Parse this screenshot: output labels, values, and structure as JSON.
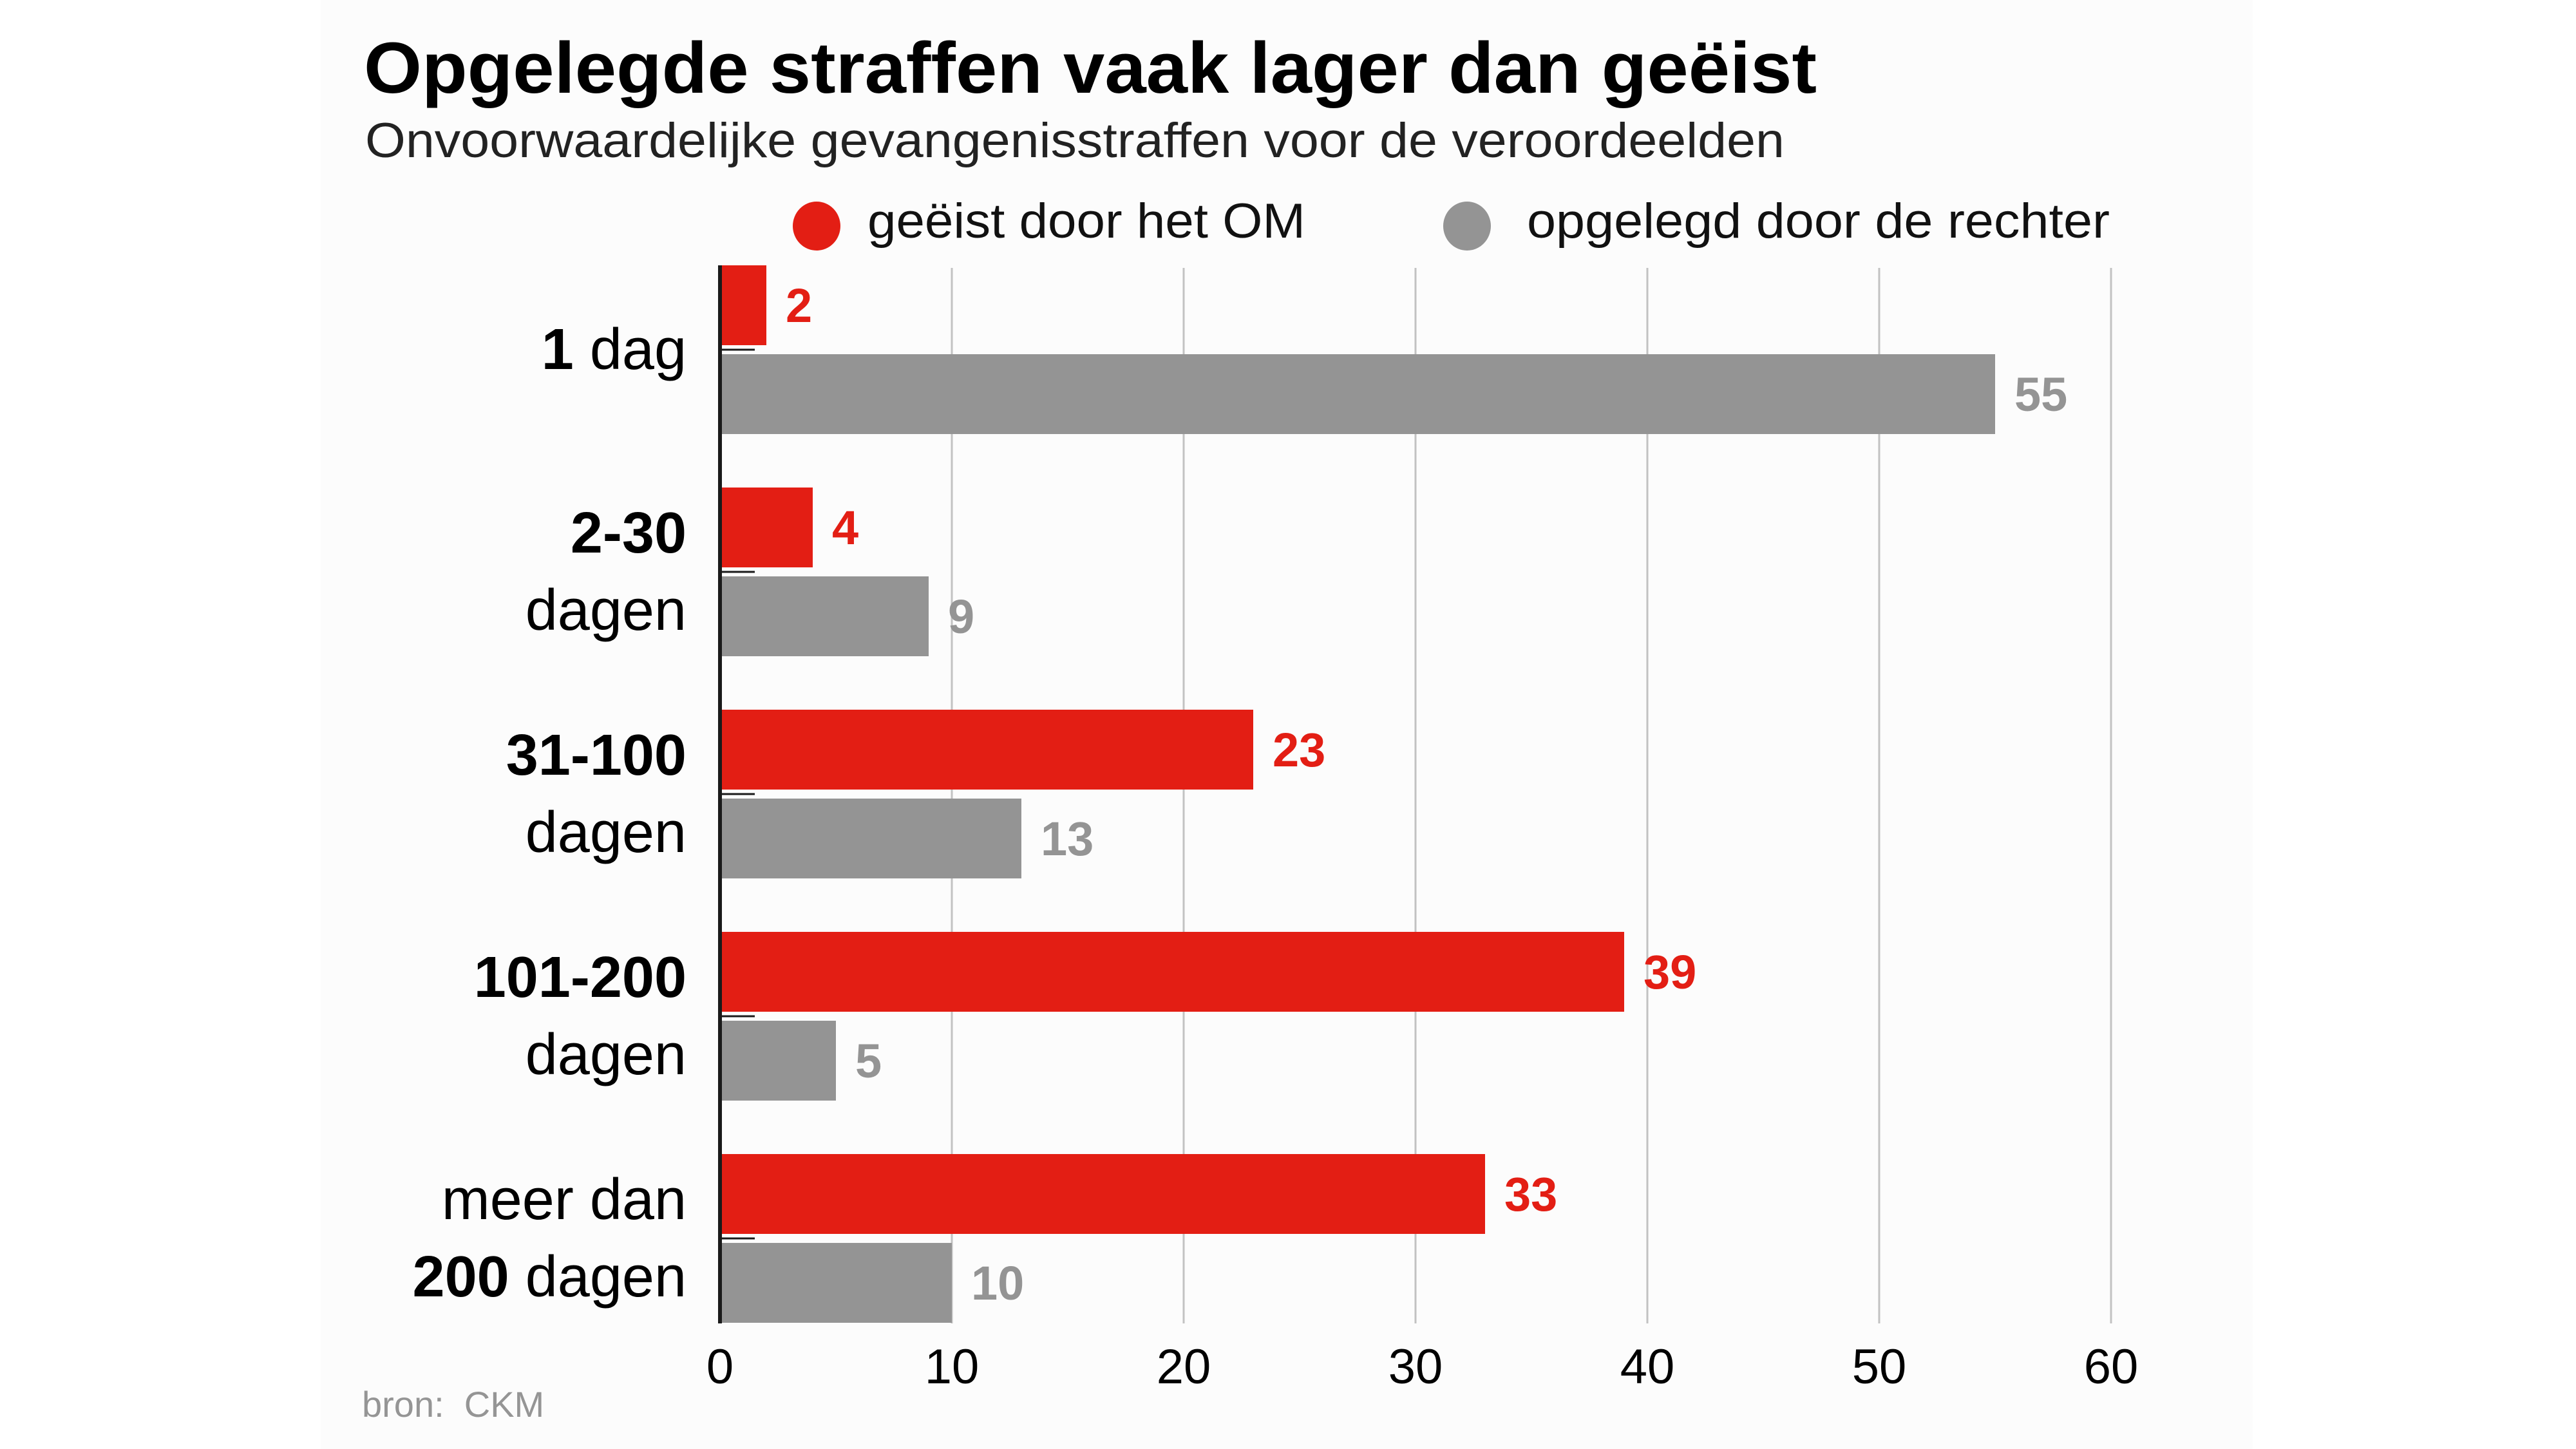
{
  "header": {
    "title": "Opgelegde straffen vaak lager dan geëist",
    "subtitle": "Onvoorwaardelijke gevangenisstraffen voor de veroordeelden"
  },
  "colors": {
    "demanded": "#e31e14",
    "imposed": "#949494",
    "axis": "#1a1a1a",
    "grid": "#c2c2c2",
    "panel": "#fcfcfc"
  },
  "legend": [
    {
      "label": "geëist door het OM",
      "color_key": "demanded",
      "icon": "circle-icon"
    },
    {
      "label": "opgelegd door de rechter",
      "color_key": "imposed",
      "icon": "circle-icon"
    }
  ],
  "source": "bron:  CKM",
  "chart_data": {
    "type": "bar",
    "orientation": "horizontal",
    "title": "Opgelegde straffen vaak lager dan geëist",
    "subtitle": "Onvoorwaardelijke gevangenisstraffen voor de veroordeelden",
    "xlabel": "",
    "ylabel": "",
    "xlim": [
      0,
      60
    ],
    "xticks": [
      0,
      10,
      20,
      30,
      40,
      50,
      60
    ],
    "grid": true,
    "legend_position": "top",
    "categories": [
      {
        "id": "1 dag",
        "lines": [
          [
            {
              "text": "1",
              "bold": true
            },
            {
              "text": " dag",
              "bold": false
            }
          ]
        ]
      },
      {
        "id": "2-30 dagen",
        "lines": [
          [
            {
              "text": "2-30",
              "bold": true
            }
          ],
          [
            {
              "text": "dagen",
              "bold": false
            }
          ]
        ]
      },
      {
        "id": "31-100 dagen",
        "lines": [
          [
            {
              "text": "31-100",
              "bold": true
            }
          ],
          [
            {
              "text": "dagen",
              "bold": false
            }
          ]
        ]
      },
      {
        "id": "101-200 dagen",
        "lines": [
          [
            {
              "text": "101-200",
              "bold": true
            }
          ],
          [
            {
              "text": "dagen",
              "bold": false
            }
          ]
        ]
      },
      {
        "id": "meer dan 200 dagen",
        "lines": [
          [
            {
              "text": "meer dan",
              "bold": false
            }
          ],
          [
            {
              "text": "200",
              "bold": true
            },
            {
              "text": " dagen",
              "bold": false
            }
          ]
        ]
      }
    ],
    "series": [
      {
        "name": "geëist door het OM",
        "color_key": "demanded",
        "values": [
          2,
          4,
          23,
          39,
          33
        ]
      },
      {
        "name": "opgelegd door de rechter",
        "color_key": "imposed",
        "values": [
          55,
          9,
          13,
          5,
          10
        ]
      }
    ],
    "source": "bron: CKM"
  }
}
